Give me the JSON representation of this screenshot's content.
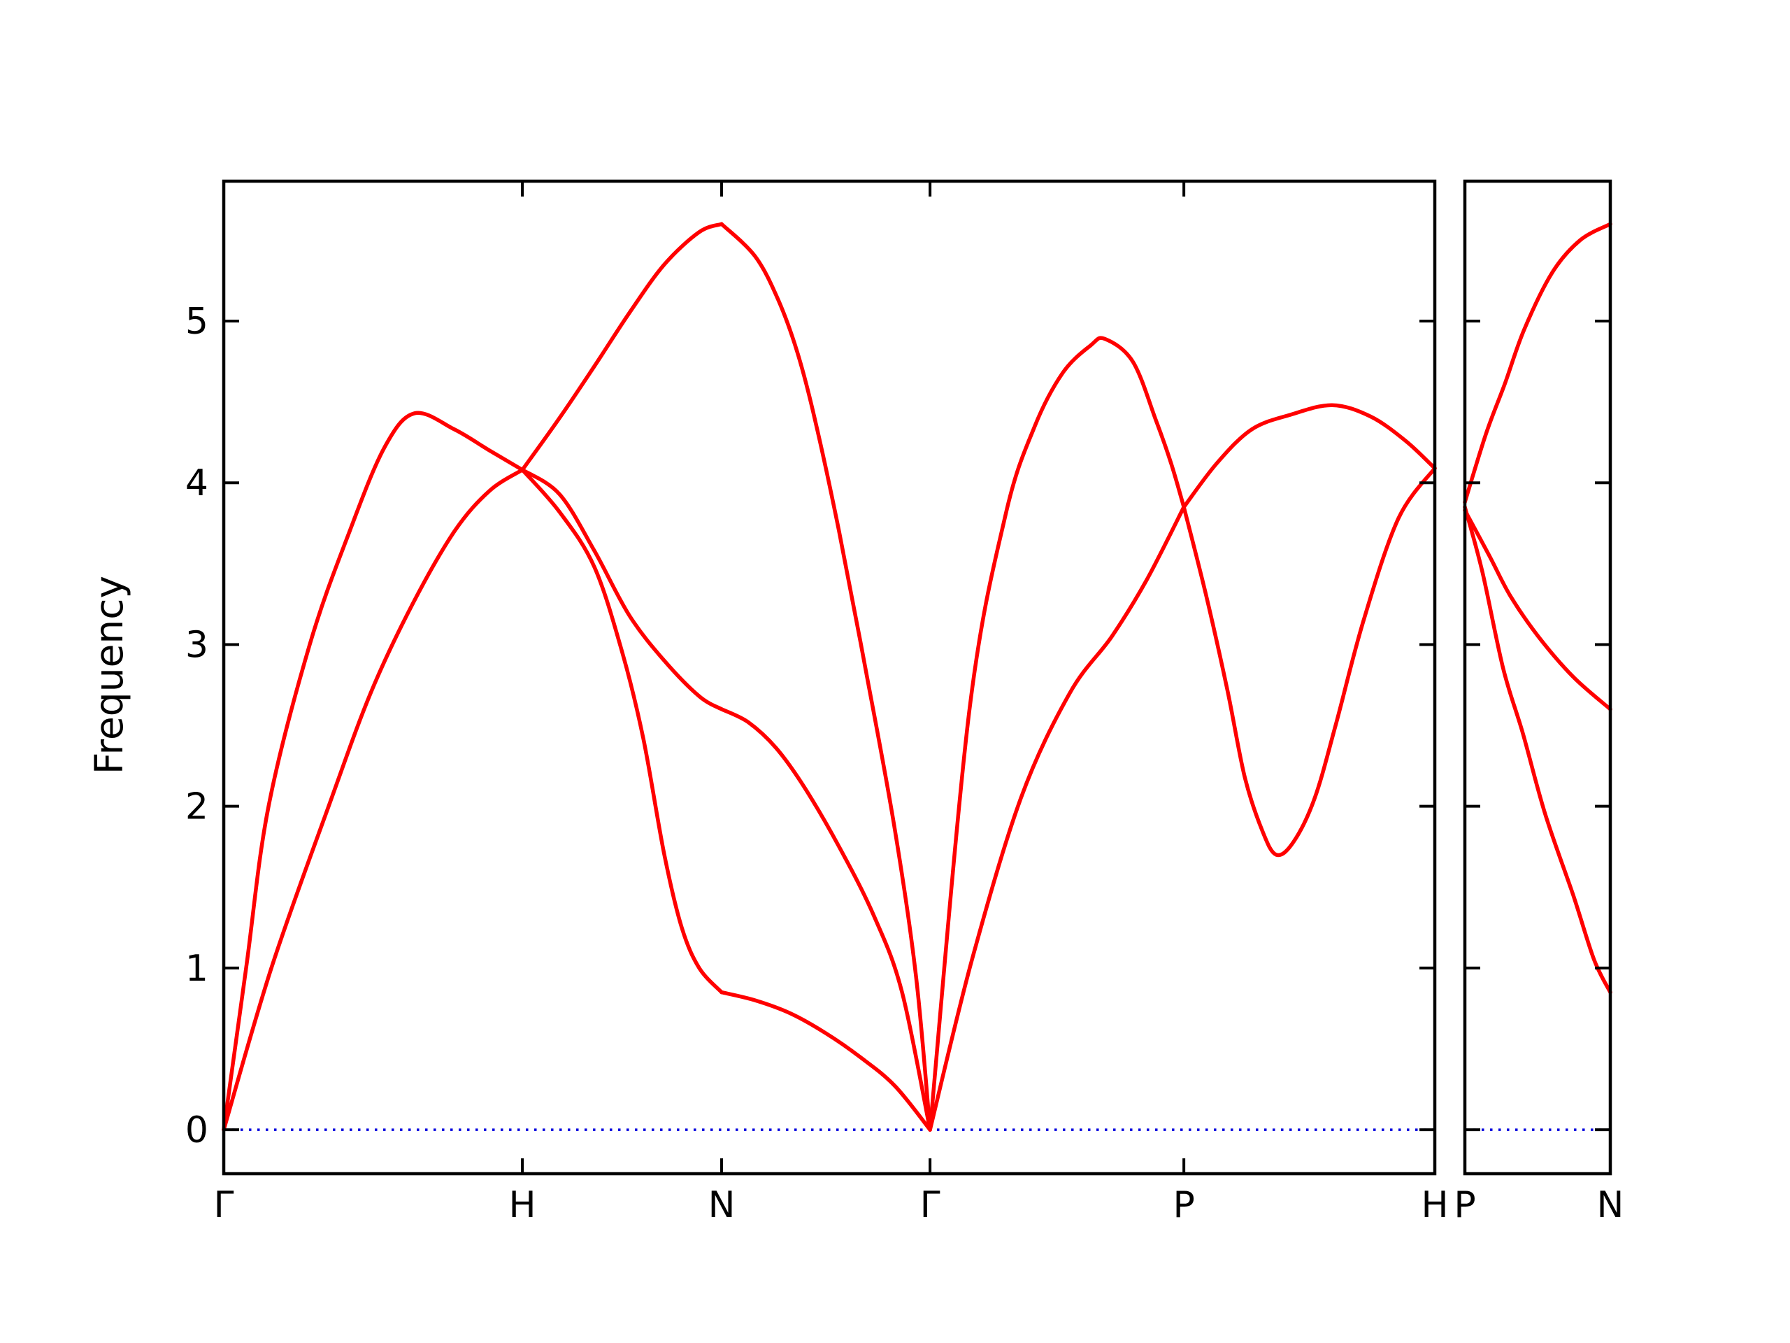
{
  "figure": {
    "background": "#ffffff"
  },
  "chart_data": {
    "type": "line",
    "title": "",
    "xlabel": "",
    "ylabel": "Frequency",
    "ylim": [
      -0.272,
      5.865
    ],
    "yticks": [
      0,
      1,
      2,
      3,
      4,
      5
    ],
    "grid": "off",
    "legend": "none",
    "axis_color": "#000000",
    "curve_color": "#ff0000",
    "zero_line": {
      "value": 0,
      "color": "#0000dd",
      "style": "dotted"
    },
    "panels": [
      {
        "name": "main-path",
        "k_weight": 1732,
        "xticks": [
          {
            "label": "Γ",
            "u": 0.0
          },
          {
            "label": "H",
            "u": 0.2466
          },
          {
            "label": "N",
            "u": 0.4111
          },
          {
            "label": "Γ",
            "u": 0.5832
          },
          {
            "label": "P",
            "u": 0.7928
          },
          {
            "label": "H",
            "u": 1.0
          }
        ],
        "branches": [
          {
            "name": "GH-upper",
            "points": [
              [
                0,
                0
              ],
              [
                0.0185,
                1.0
              ],
              [
                0.037,
                2.0
              ],
              [
                0.071,
                3.0
              ],
              [
                0.1039,
                3.7
              ],
              [
                0.1328,
                4.22
              ],
              [
                0.1576,
                4.43
              ],
              [
                0.1905,
                4.33
              ],
              [
                0.2194,
                4.2
              ],
              [
                0.2466,
                4.08
              ]
            ]
          },
          {
            "name": "GH-lower",
            "points": [
              [
                0,
                0
              ],
              [
                0.0393,
                1.0
              ],
              [
                0.0866,
                2.0
              ],
              [
                0.1213,
                2.7
              ],
              [
                0.1559,
                3.25
              ],
              [
                0.1905,
                3.7
              ],
              [
                0.2194,
                3.95
              ],
              [
                0.2466,
                4.08
              ]
            ]
          },
          {
            "name": "HN-top",
            "points": [
              [
                0.2466,
                4.08
              ],
              [
                0.2772,
                4.4
              ],
              [
                0.306,
                4.72
              ],
              [
                0.3349,
                5.05
              ],
              [
                0.3638,
                5.35
              ],
              [
                0.3926,
                5.55
              ],
              [
                0.4111,
                5.6
              ]
            ]
          },
          {
            "name": "HN-middle",
            "points": [
              [
                0.2466,
                4.08
              ],
              [
                0.2772,
                3.93
              ],
              [
                0.306,
                3.58
              ],
              [
                0.3349,
                3.18
              ],
              [
                0.3638,
                2.9
              ],
              [
                0.3926,
                2.68
              ],
              [
                0.4111,
                2.6
              ]
            ]
          },
          {
            "name": "HN-bottom",
            "points": [
              [
                0.2466,
                4.08
              ],
              [
                0.2772,
                3.82
              ],
              [
                0.306,
                3.48
              ],
              [
                0.3291,
                2.95
              ],
              [
                0.3464,
                2.42
              ],
              [
                0.3638,
                1.7
              ],
              [
                0.3782,
                1.25
              ],
              [
                0.3926,
                1.0
              ],
              [
                0.4111,
                0.85
              ]
            ]
          },
          {
            "name": "NG-top",
            "points": [
              [
                0.4111,
                5.6
              ],
              [
                0.4388,
                5.4
              ],
              [
                0.4579,
                5.13
              ],
              [
                0.4735,
                4.81
              ],
              [
                0.4879,
                4.4
              ],
              [
                0.5081,
                3.7
              ],
              [
                0.5312,
                2.8
              ],
              [
                0.5543,
                1.85
              ],
              [
                0.5716,
                0.95
              ],
              [
                0.5832,
                0
              ]
            ]
          },
          {
            "name": "NG-middle",
            "points": [
              [
                0.4111,
                2.6
              ],
              [
                0.433,
                2.52
              ],
              [
                0.4561,
                2.36
              ],
              [
                0.4792,
                2.12
              ],
              [
                0.5081,
                1.75
              ],
              [
                0.537,
                1.32
              ],
              [
                0.5601,
                0.85
              ],
              [
                0.5832,
                0
              ]
            ]
          },
          {
            "name": "NG-bottom",
            "points": [
              [
                0.4111,
                0.85
              ],
              [
                0.4388,
                0.8
              ],
              [
                0.4677,
                0.72
              ],
              [
                0.4965,
                0.6
              ],
              [
                0.5254,
                0.45
              ],
              [
                0.5543,
                0.27
              ],
              [
                0.5832,
                0
              ]
            ]
          },
          {
            "name": "GP-upper",
            "points": [
              [
                0.5832,
                0
              ],
              [
                0.6155,
                2.58
              ],
              [
                0.6455,
                3.8
              ],
              [
                0.6697,
                4.35
              ],
              [
                0.6928,
                4.68
              ],
              [
                0.7159,
                4.85
              ],
              [
                0.7275,
                4.89
              ],
              [
                0.7506,
                4.75
              ],
              [
                0.7696,
                4.39
              ],
              [
                0.7823,
                4.12
              ],
              [
                0.7928,
                3.85
              ]
            ]
          },
          {
            "name": "GP-lower",
            "points": [
              [
                0.5832,
                0
              ],
              [
                0.6178,
                1.05
              ],
              [
                0.6582,
                2.05
              ],
              [
                0.6986,
                2.7
              ],
              [
                0.7333,
                3.05
              ],
              [
                0.7621,
                3.4
              ],
              [
                0.7928,
                3.85
              ]
            ]
          },
          {
            "name": "PH-upper",
            "points": [
              [
                0.7928,
                3.85
              ],
              [
                0.8199,
                4.12
              ],
              [
                0.8488,
                4.33
              ],
              [
                0.8805,
                4.42
              ],
              [
                0.9152,
                4.48
              ],
              [
                0.9469,
                4.41
              ],
              [
                0.9758,
                4.26
              ],
              [
                1,
                4.09
              ]
            ]
          },
          {
            "name": "PH-lower",
            "points": [
              [
                0.7928,
                3.85
              ],
              [
                0.8113,
                3.3
              ],
              [
                0.8287,
                2.72
              ],
              [
                0.8431,
                2.18
              ],
              [
                0.8575,
                1.85
              ],
              [
                0.8691,
                1.7
              ],
              [
                0.8834,
                1.78
              ],
              [
                0.9008,
                2.05
              ],
              [
                0.9181,
                2.5
              ],
              [
                0.9412,
                3.15
              ],
              [
                0.97,
                3.78
              ],
              [
                1,
                4.09
              ]
            ]
          }
        ]
      },
      {
        "name": "PN-path",
        "k_weight": 208,
        "xticks": [
          {
            "label": "P",
            "u": 0.0
          },
          {
            "label": "N",
            "u": 1.0
          }
        ],
        "branches": [
          {
            "name": "PN-top",
            "points": [
              [
                0,
                3.88
              ],
              [
                0.144,
                4.3
              ],
              [
                0.274,
                4.61
              ],
              [
                0.409,
                4.95
              ],
              [
                0.601,
                5.3
              ],
              [
                0.793,
                5.5
              ],
              [
                1,
                5.6
              ]
            ]
          },
          {
            "name": "PN-middle",
            "points": [
              [
                0,
                3.83
              ],
              [
                0.168,
                3.55
              ],
              [
                0.313,
                3.3
              ],
              [
                0.505,
                3.05
              ],
              [
                0.745,
                2.8
              ],
              [
                1,
                2.6
              ]
            ]
          },
          {
            "name": "PN-bottom",
            "points": [
              [
                0,
                3.85
              ],
              [
                0.12,
                3.45
              ],
              [
                0.264,
                2.85
              ],
              [
                0.399,
                2.45
              ],
              [
                0.553,
                1.95
              ],
              [
                0.745,
                1.45
              ],
              [
                0.889,
                1.05
              ],
              [
                1,
                0.85
              ]
            ]
          }
        ]
      }
    ]
  }
}
